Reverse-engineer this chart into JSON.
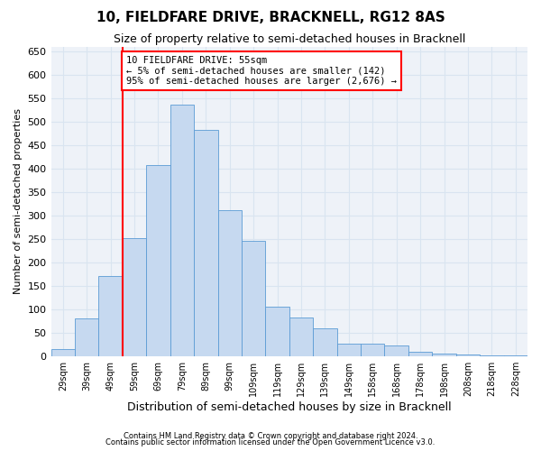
{
  "title": "10, FIELDFARE DRIVE, BRACKNELL, RG12 8AS",
  "subtitle": "Size of property relative to semi-detached houses in Bracknell",
  "xlabel": "Distribution of semi-detached houses by size in Bracknell",
  "ylabel": "Number of semi-detached properties",
  "categories": [
    "29sqm",
    "39sqm",
    "49sqm",
    "59sqm",
    "69sqm",
    "79sqm",
    "89sqm",
    "99sqm",
    "109sqm",
    "119sqm",
    "129sqm",
    "139sqm",
    "149sqm",
    "158sqm",
    "168sqm",
    "178sqm",
    "198sqm",
    "208sqm",
    "218sqm",
    "228sqm"
  ],
  "values": [
    15,
    80,
    170,
    252,
    408,
    537,
    483,
    312,
    245,
    106,
    83,
    60,
    27,
    27,
    22,
    10,
    5,
    3,
    2,
    1
  ],
  "bar_color": "#c6d9f0",
  "bar_edgecolor": "#5b9bd5",
  "vline_color": "red",
  "vline_x": 2.5,
  "annotation_text": "10 FIELDFARE DRIVE: 55sqm\n← 5% of semi-detached houses are smaller (142)\n95% of semi-detached houses are larger (2,676) →",
  "annotation_box_facecolor": "white",
  "annotation_box_edgecolor": "red",
  "ylim": [
    0,
    660
  ],
  "yticks": [
    0,
    50,
    100,
    150,
    200,
    250,
    300,
    350,
    400,
    450,
    500,
    550,
    600,
    650
  ],
  "footer1": "Contains HM Land Registry data © Crown copyright and database right 2024.",
  "footer2": "Contains public sector information licensed under the Open Government Licence v3.0.",
  "grid_color": "#d9e4f0",
  "bg_color": "#eef2f8",
  "title_fontsize": 11,
  "subtitle_fontsize": 9,
  "ylabel_fontsize": 8,
  "xlabel_fontsize": 9,
  "tick_fontsize": 8,
  "xtick_fontsize": 7,
  "annotation_fontsize": 7.5,
  "footer_fontsize": 6
}
